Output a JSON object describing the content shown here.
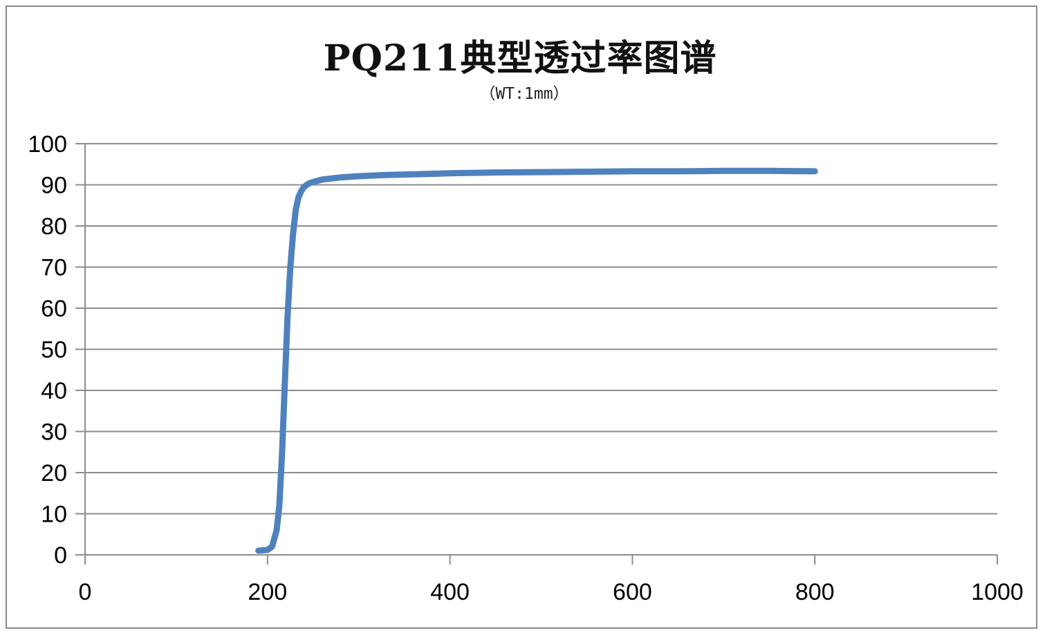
{
  "chart_data": {
    "type": "line",
    "title": "PQ211典型透过率图谱",
    "subtitle": "（WT:1mm）",
    "xlabel": "",
    "ylabel": "",
    "xlim": [
      0,
      1000
    ],
    "ylim": [
      0,
      100
    ],
    "xticks": [
      0,
      200,
      400,
      600,
      800,
      1000
    ],
    "yticks": [
      0,
      10,
      20,
      30,
      40,
      50,
      60,
      70,
      80,
      90,
      100
    ],
    "grid": "horizontal",
    "legend": "none",
    "series": [
      {
        "color": "#4f81bd",
        "x": [
          190,
          200,
          205,
          210,
          213,
          216,
          219,
          222,
          225,
          228,
          231,
          234,
          237,
          240,
          245,
          250,
          260,
          280,
          300,
          330,
          350,
          400,
          450,
          500,
          550,
          600,
          650,
          700,
          750,
          800
        ],
        "y": [
          1,
          1.2,
          2,
          6,
          12,
          25,
          42,
          58,
          70,
          78,
          84,
          87,
          88.5,
          89.5,
          90.3,
          90.7,
          91.3,
          91.8,
          92.1,
          92.4,
          92.5,
          92.8,
          93.0,
          93.1,
          93.2,
          93.3,
          93.3,
          93.4,
          93.4,
          93.3
        ]
      }
    ]
  }
}
